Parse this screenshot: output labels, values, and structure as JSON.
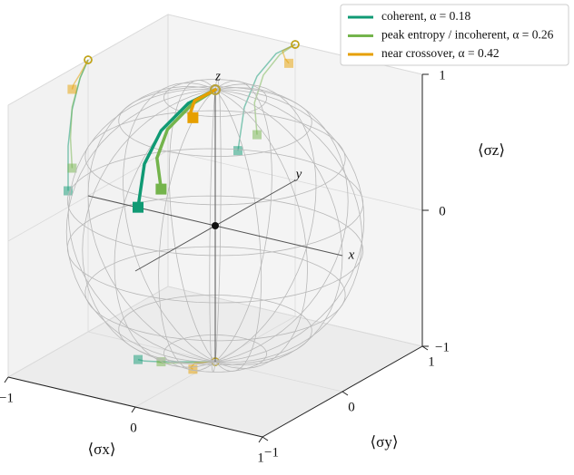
{
  "chart_data": {
    "type": "bloch3d",
    "xlabel": "⟨σx⟩",
    "ylabel": "⟨σy⟩",
    "zlabel": "⟨σz⟩",
    "sphere_axis_labels": [
      "x",
      "y",
      "z"
    ],
    "xlim": [
      -1,
      1
    ],
    "ylim": [
      -1,
      1
    ],
    "zlim": [
      -1,
      1
    ],
    "xticks": [
      {
        "value": -1,
        "label": "−1"
      },
      0,
      1
    ],
    "yticks": [
      {
        "value": -1,
        "label": "−1"
      },
      0,
      1
    ],
    "zticks": [
      {
        "value": -1,
        "label": "−1"
      },
      0,
      1
    ],
    "grid": true,
    "legend": "upper right",
    "series": [
      {
        "name": "coherent, α = 0.18",
        "color": "#109a74",
        "x": [
          0,
          -0.15,
          -0.3,
          -0.4,
          -0.45
        ],
        "y": [
          0,
          -0.1,
          -0.2,
          -0.25,
          -0.25
        ],
        "z": [
          1,
          0.9,
          0.7,
          0.45,
          0.12
        ]
      },
      {
        "name": "peak entropy / incoherent, α = 0.26",
        "color": "#74b44c",
        "x": [
          0,
          -0.12,
          -0.25,
          -0.32,
          -0.3
        ],
        "y": [
          0,
          -0.1,
          -0.2,
          -0.22,
          -0.2
        ],
        "z": [
          1,
          0.9,
          0.72,
          0.5,
          0.27
        ]
      },
      {
        "name": "near crossover, α = 0.42",
        "color": "#e69f00",
        "x": [
          0,
          -0.1,
          -0.08,
          -0.05
        ],
        "y": [
          0,
          -0.1,
          -0.18,
          -0.2
        ],
        "z": [
          1,
          0.93,
          0.88,
          0.85
        ]
      }
    ]
  }
}
